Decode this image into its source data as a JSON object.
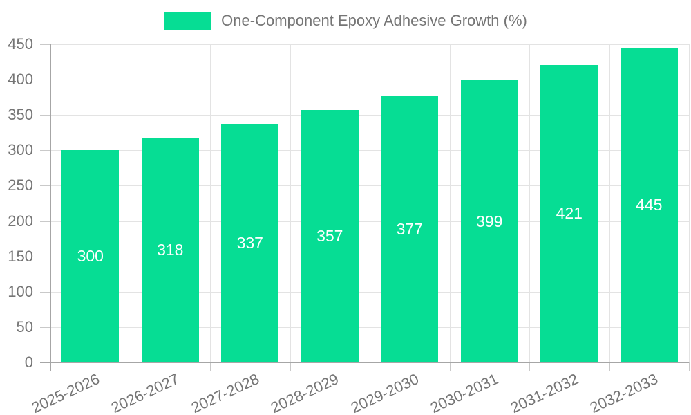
{
  "chart_data": {
    "type": "bar",
    "title": "One-Component Epoxy Adhesive Growth (%)",
    "categories": [
      "2025-2026",
      "2026-2027",
      "2027-2028",
      "2028-2029",
      "2029-2030",
      "2030-2031",
      "2031-2032",
      "2032-2033"
    ],
    "values": [
      300,
      318,
      337,
      357,
      377,
      399,
      421,
      445
    ],
    "xlabel": "",
    "ylabel": "",
    "ylim": [
      0,
      450
    ],
    "ytick_step": 50,
    "grid": true,
    "legend_position": "top-center",
    "colors": {
      "bar": "#06DD94",
      "bar_label": "#ffffff",
      "axis_text": "#757575",
      "grid": "#E3E3E3",
      "tick": "#C9C9C9",
      "axis_line": "#A6A6A6"
    }
  }
}
